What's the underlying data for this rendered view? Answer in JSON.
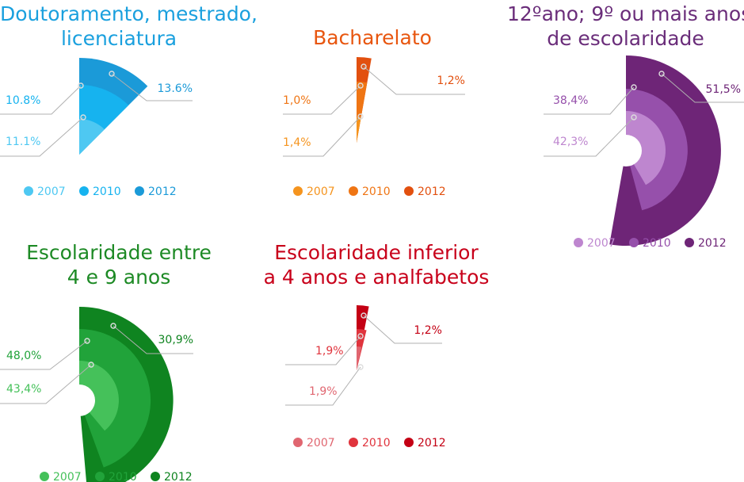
{
  "chart_data": [
    {
      "type": "polar-area",
      "title": [
        "Doutoramento, mestrado,",
        "licenciatura"
      ],
      "color": "#1aa0de",
      "series": [
        {
          "name": "2007",
          "value": "11.1%",
          "color": "#4ec8f2"
        },
        {
          "name": "2010",
          "value": "10.8%",
          "color": "#16b3ef"
        },
        {
          "name": "2012",
          "value": "13.6%",
          "color": "#1b9ad8"
        }
      ]
    },
    {
      "type": "polar-area",
      "title": [
        "Bacharelato"
      ],
      "color": "#e8560f",
      "series": [
        {
          "name": "2007",
          "value": "1,4%",
          "color": "#f5941e"
        },
        {
          "name": "2010",
          "value": "1,0%",
          "color": "#ef7514"
        },
        {
          "name": "2012",
          "value": "1,2%",
          "color": "#e2500f"
        }
      ]
    },
    {
      "type": "polar-area",
      "title": [
        "12ºano; 9º ou mais anos",
        "de escolaridade"
      ],
      "color": "#6a2d7a",
      "series": [
        {
          "name": "2007",
          "value": "42,3%",
          "color": "#be86cf"
        },
        {
          "name": "2010",
          "value": "38,4%",
          "color": "#9650ab"
        },
        {
          "name": "2012",
          "value": "51,5%",
          "color": "#6e2577"
        }
      ]
    },
    {
      "type": "polar-area",
      "title": [
        "Escolaridade entre",
        "4 e 9 anos"
      ],
      "color": "#1d8a25",
      "series": [
        {
          "name": "2007",
          "value": "43,4%",
          "color": "#45c15a"
        },
        {
          "name": "2010",
          "value": "48,0%",
          "color": "#21a33a"
        },
        {
          "name": "2012",
          "value": "30,9%",
          "color": "#0f8420"
        }
      ]
    },
    {
      "type": "polar-area",
      "title": [
        "Escolaridade inferior",
        "a 4 anos e analfabetos"
      ],
      "color": "#c8001a",
      "series": [
        {
          "name": "2007",
          "value": "1,9%",
          "color": "#e06670"
        },
        {
          "name": "2010",
          "value": "1,9%",
          "color": "#e0343d"
        },
        {
          "name": "2012",
          "value": "1,2%",
          "color": "#c40014"
        }
      ]
    }
  ]
}
